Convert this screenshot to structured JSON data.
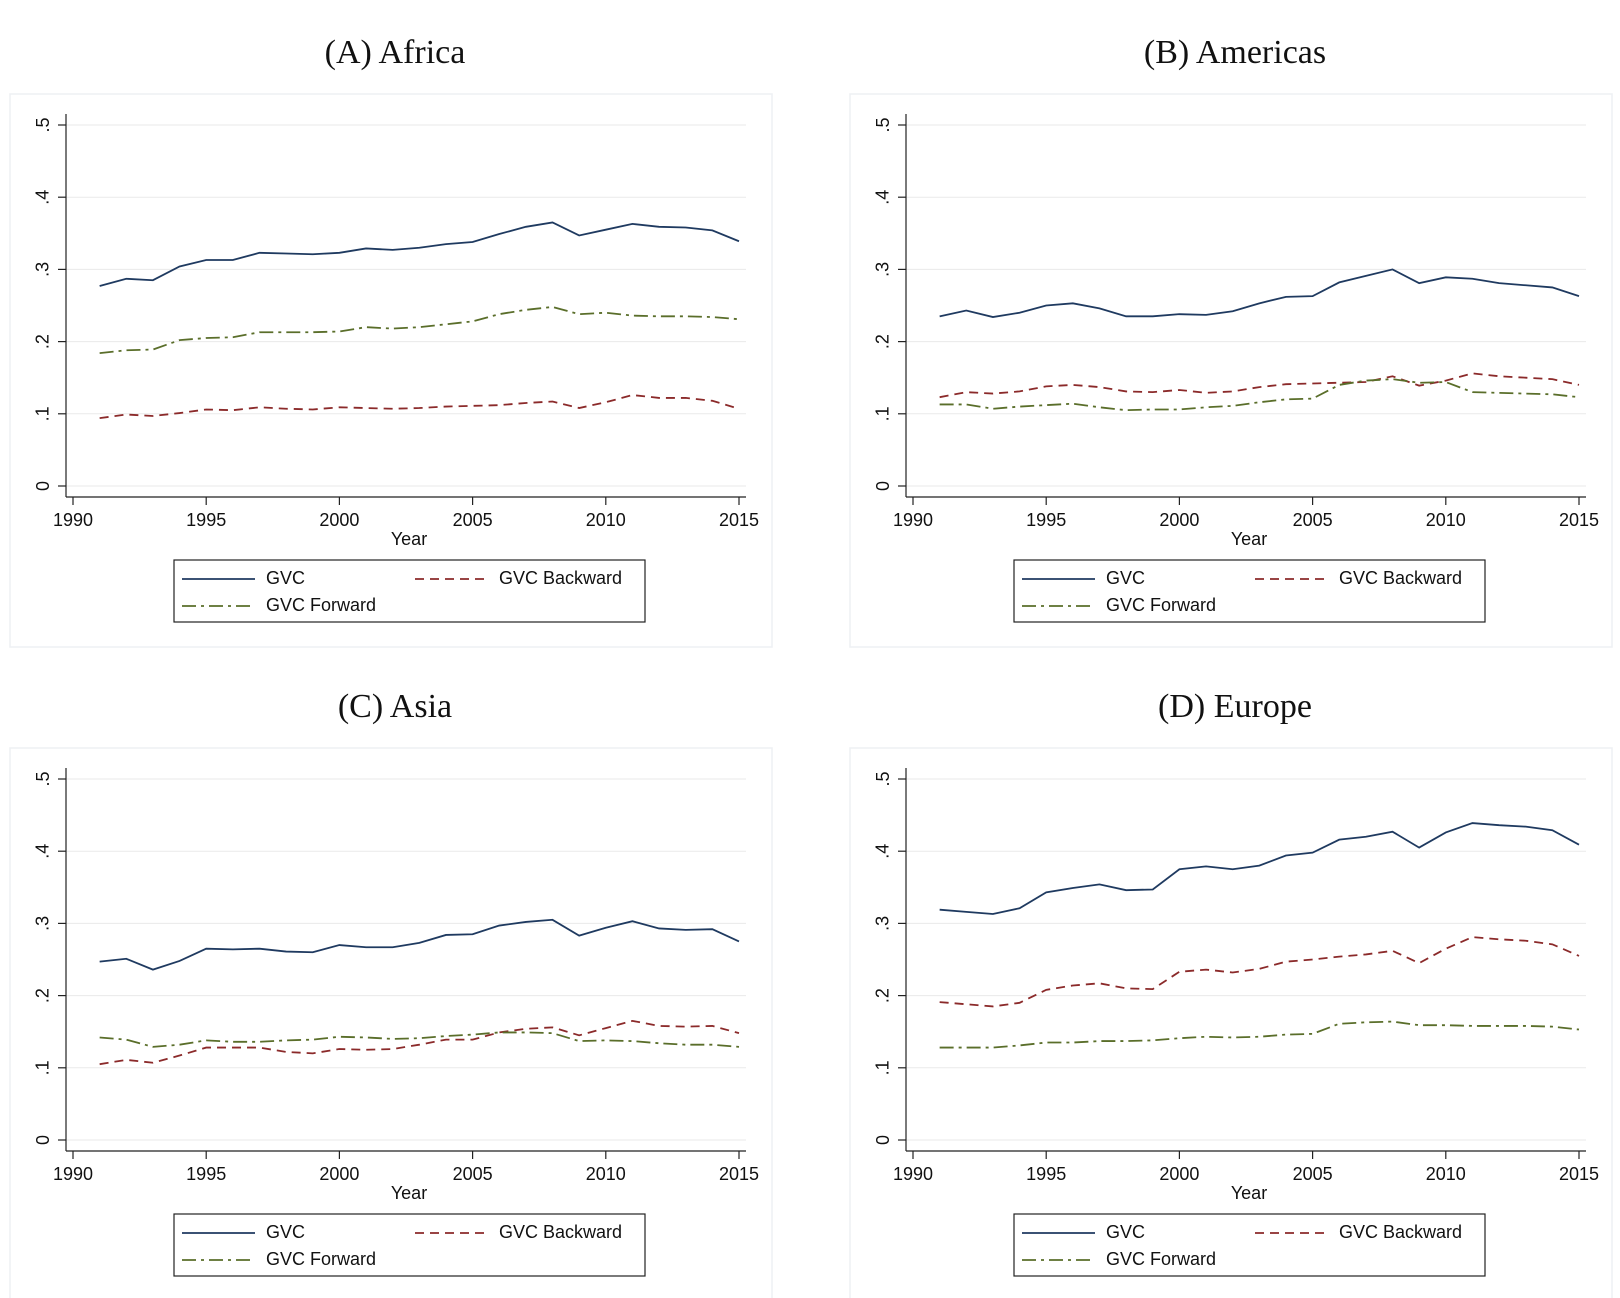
{
  "chart_data": [
    {
      "type": "line",
      "title": "(A) Africa",
      "xlabel": "Year",
      "x": [
        1991,
        1992,
        1993,
        1994,
        1995,
        1996,
        1997,
        1998,
        1999,
        2000,
        2001,
        2002,
        2003,
        2004,
        2005,
        2006,
        2007,
        2008,
        2009,
        2010,
        2011,
        2012,
        2013,
        2014,
        2015
      ],
      "series": [
        {
          "name": "GVC",
          "color": "#1f3a60",
          "line_style": "solid",
          "values": [
            0.277,
            0.287,
            0.285,
            0.304,
            0.313,
            0.313,
            0.323,
            0.322,
            0.321,
            0.323,
            0.329,
            0.327,
            0.33,
            0.335,
            0.338,
            0.349,
            0.359,
            0.365,
            0.347,
            0.355,
            0.363,
            0.359,
            0.358,
            0.354,
            0.339
          ]
        },
        {
          "name": "GVC Backward",
          "color": "#8b2a2a",
          "line_style": "dash",
          "values": [
            0.094,
            0.099,
            0.097,
            0.101,
            0.106,
            0.105,
            0.109,
            0.107,
            0.106,
            0.109,
            0.108,
            0.107,
            0.108,
            0.11,
            0.111,
            0.112,
            0.115,
            0.117,
            0.108,
            0.116,
            0.126,
            0.122,
            0.122,
            0.118,
            0.107
          ]
        },
        {
          "name": "GVC Forward",
          "color": "#5a6e2a",
          "line_style": "dashdot",
          "values": [
            0.184,
            0.188,
            0.189,
            0.202,
            0.205,
            0.206,
            0.213,
            0.213,
            0.213,
            0.214,
            0.22,
            0.218,
            0.22,
            0.224,
            0.228,
            0.238,
            0.244,
            0.248,
            0.238,
            0.24,
            0.236,
            0.235,
            0.235,
            0.234,
            0.231
          ]
        }
      ],
      "xlim": [
        1990,
        2015
      ],
      "xticks": [
        1990,
        1995,
        2000,
        2005,
        2010,
        2015
      ],
      "ylim": [
        0,
        0.5
      ],
      "yticks": [
        0,
        {
          "value": 0.1,
          "label": ".1"
        },
        {
          "value": 0.2,
          "label": ".2"
        },
        {
          "value": 0.3,
          "label": ".3"
        },
        {
          "value": 0.4,
          "label": ".4"
        },
        {
          "value": 0.5,
          "label": ".5"
        }
      ],
      "grid": true,
      "legend": "bottom"
    },
    {
      "type": "line",
      "title": "(B) Americas",
      "xlabel": "Year",
      "x": [
        1991,
        1992,
        1993,
        1994,
        1995,
        1996,
        1997,
        1998,
        1999,
        2000,
        2001,
        2002,
        2003,
        2004,
        2005,
        2006,
        2007,
        2008,
        2009,
        2010,
        2011,
        2012,
        2013,
        2014,
        2015
      ],
      "series": [
        {
          "name": "GVC",
          "color": "#1f3a60",
          "line_style": "solid",
          "values": [
            0.235,
            0.243,
            0.234,
            0.24,
            0.25,
            0.253,
            0.246,
            0.235,
            0.235,
            0.238,
            0.237,
            0.242,
            0.253,
            0.262,
            0.263,
            0.282,
            0.291,
            0.3,
            0.281,
            0.289,
            0.287,
            0.281,
            0.278,
            0.275,
            0.263
          ]
        },
        {
          "name": "GVC Backward",
          "color": "#8b2a2a",
          "line_style": "dash",
          "values": [
            0.123,
            0.13,
            0.128,
            0.131,
            0.138,
            0.14,
            0.137,
            0.131,
            0.13,
            0.133,
            0.129,
            0.131,
            0.137,
            0.141,
            0.142,
            0.143,
            0.144,
            0.152,
            0.139,
            0.146,
            0.156,
            0.152,
            0.15,
            0.148,
            0.14
          ]
        },
        {
          "name": "GVC Forward",
          "color": "#5a6e2a",
          "line_style": "dashdot",
          "values": [
            0.113,
            0.113,
            0.107,
            0.11,
            0.112,
            0.114,
            0.109,
            0.105,
            0.106,
            0.106,
            0.109,
            0.111,
            0.116,
            0.12,
            0.121,
            0.14,
            0.146,
            0.148,
            0.143,
            0.144,
            0.13,
            0.129,
            0.128,
            0.127,
            0.123
          ]
        }
      ],
      "xlim": [
        1990,
        2015
      ],
      "xticks": [
        1990,
        1995,
        2000,
        2005,
        2010,
        2015
      ],
      "ylim": [
        0,
        0.5
      ],
      "yticks": [
        0,
        {
          "value": 0.1,
          "label": ".1"
        },
        {
          "value": 0.2,
          "label": ".2"
        },
        {
          "value": 0.3,
          "label": ".3"
        },
        {
          "value": 0.4,
          "label": ".4"
        },
        {
          "value": 0.5,
          "label": ".5"
        }
      ],
      "grid": true,
      "legend": "bottom"
    },
    {
      "type": "line",
      "title": "(C) Asia",
      "xlabel": "Year",
      "x": [
        1991,
        1992,
        1993,
        1994,
        1995,
        1996,
        1997,
        1998,
        1999,
        2000,
        2001,
        2002,
        2003,
        2004,
        2005,
        2006,
        2007,
        2008,
        2009,
        2010,
        2011,
        2012,
        2013,
        2014,
        2015
      ],
      "series": [
        {
          "name": "GVC",
          "color": "#1f3a60",
          "line_style": "solid",
          "values": [
            0.247,
            0.251,
            0.236,
            0.248,
            0.265,
            0.264,
            0.265,
            0.261,
            0.26,
            0.27,
            0.267,
            0.267,
            0.273,
            0.284,
            0.285,
            0.297,
            0.302,
            0.305,
            0.283,
            0.294,
            0.303,
            0.293,
            0.291,
            0.292,
            0.275
          ]
        },
        {
          "name": "GVC Backward",
          "color": "#8b2a2a",
          "line_style": "dash",
          "values": [
            0.105,
            0.111,
            0.107,
            0.117,
            0.128,
            0.128,
            0.128,
            0.122,
            0.12,
            0.126,
            0.125,
            0.126,
            0.132,
            0.139,
            0.139,
            0.149,
            0.154,
            0.156,
            0.145,
            0.155,
            0.165,
            0.158,
            0.157,
            0.158,
            0.148
          ]
        },
        {
          "name": "GVC Forward",
          "color": "#5a6e2a",
          "line_style": "dashdot",
          "values": [
            0.142,
            0.139,
            0.129,
            0.132,
            0.138,
            0.136,
            0.136,
            0.138,
            0.139,
            0.143,
            0.142,
            0.14,
            0.141,
            0.144,
            0.146,
            0.149,
            0.149,
            0.148,
            0.137,
            0.138,
            0.137,
            0.134,
            0.132,
            0.132,
            0.129
          ]
        }
      ],
      "xlim": [
        1990,
        2015
      ],
      "xticks": [
        1990,
        1995,
        2000,
        2005,
        2010,
        2015
      ],
      "ylim": [
        0,
        0.5
      ],
      "yticks": [
        0,
        {
          "value": 0.1,
          "label": ".1"
        },
        {
          "value": 0.2,
          "label": ".2"
        },
        {
          "value": 0.3,
          "label": ".3"
        },
        {
          "value": 0.4,
          "label": ".4"
        },
        {
          "value": 0.5,
          "label": ".5"
        }
      ],
      "grid": true,
      "legend": "bottom"
    },
    {
      "type": "line",
      "title": "(D) Europe",
      "xlabel": "Year",
      "x": [
        1991,
        1992,
        1993,
        1994,
        1995,
        1996,
        1997,
        1998,
        1999,
        2000,
        2001,
        2002,
        2003,
        2004,
        2005,
        2006,
        2007,
        2008,
        2009,
        2010,
        2011,
        2012,
        2013,
        2014,
        2015
      ],
      "series": [
        {
          "name": "GVC",
          "color": "#1f3a60",
          "line_style": "solid",
          "values": [
            0.319,
            0.316,
            0.313,
            0.321,
            0.343,
            0.349,
            0.354,
            0.346,
            0.347,
            0.375,
            0.379,
            0.375,
            0.38,
            0.394,
            0.398,
            0.416,
            0.42,
            0.427,
            0.405,
            0.426,
            0.439,
            0.436,
            0.434,
            0.429,
            0.409
          ]
        },
        {
          "name": "GVC Backward",
          "color": "#8b2a2a",
          "line_style": "dash",
          "values": [
            0.191,
            0.188,
            0.185,
            0.19,
            0.208,
            0.214,
            0.217,
            0.21,
            0.209,
            0.233,
            0.236,
            0.232,
            0.237,
            0.247,
            0.25,
            0.254,
            0.257,
            0.262,
            0.245,
            0.265,
            0.281,
            0.278,
            0.276,
            0.271,
            0.255
          ]
        },
        {
          "name": "GVC Forward",
          "color": "#5a6e2a",
          "line_style": "dashdot",
          "values": [
            0.128,
            0.128,
            0.128,
            0.131,
            0.135,
            0.135,
            0.137,
            0.137,
            0.138,
            0.141,
            0.143,
            0.142,
            0.143,
            0.146,
            0.147,
            0.161,
            0.163,
            0.164,
            0.159,
            0.159,
            0.158,
            0.158,
            0.158,
            0.157,
            0.153
          ]
        }
      ],
      "xlim": [
        1990,
        2015
      ],
      "xticks": [
        1990,
        1995,
        2000,
        2005,
        2010,
        2015
      ],
      "ylim": [
        0,
        0.5
      ],
      "yticks": [
        0,
        {
          "value": 0.1,
          "label": ".1"
        },
        {
          "value": 0.2,
          "label": ".2"
        },
        {
          "value": 0.3,
          "label": ".3"
        },
        {
          "value": 0.4,
          "label": ".4"
        },
        {
          "value": 0.5,
          "label": ".5"
        }
      ],
      "grid": true,
      "legend": "bottom"
    }
  ]
}
